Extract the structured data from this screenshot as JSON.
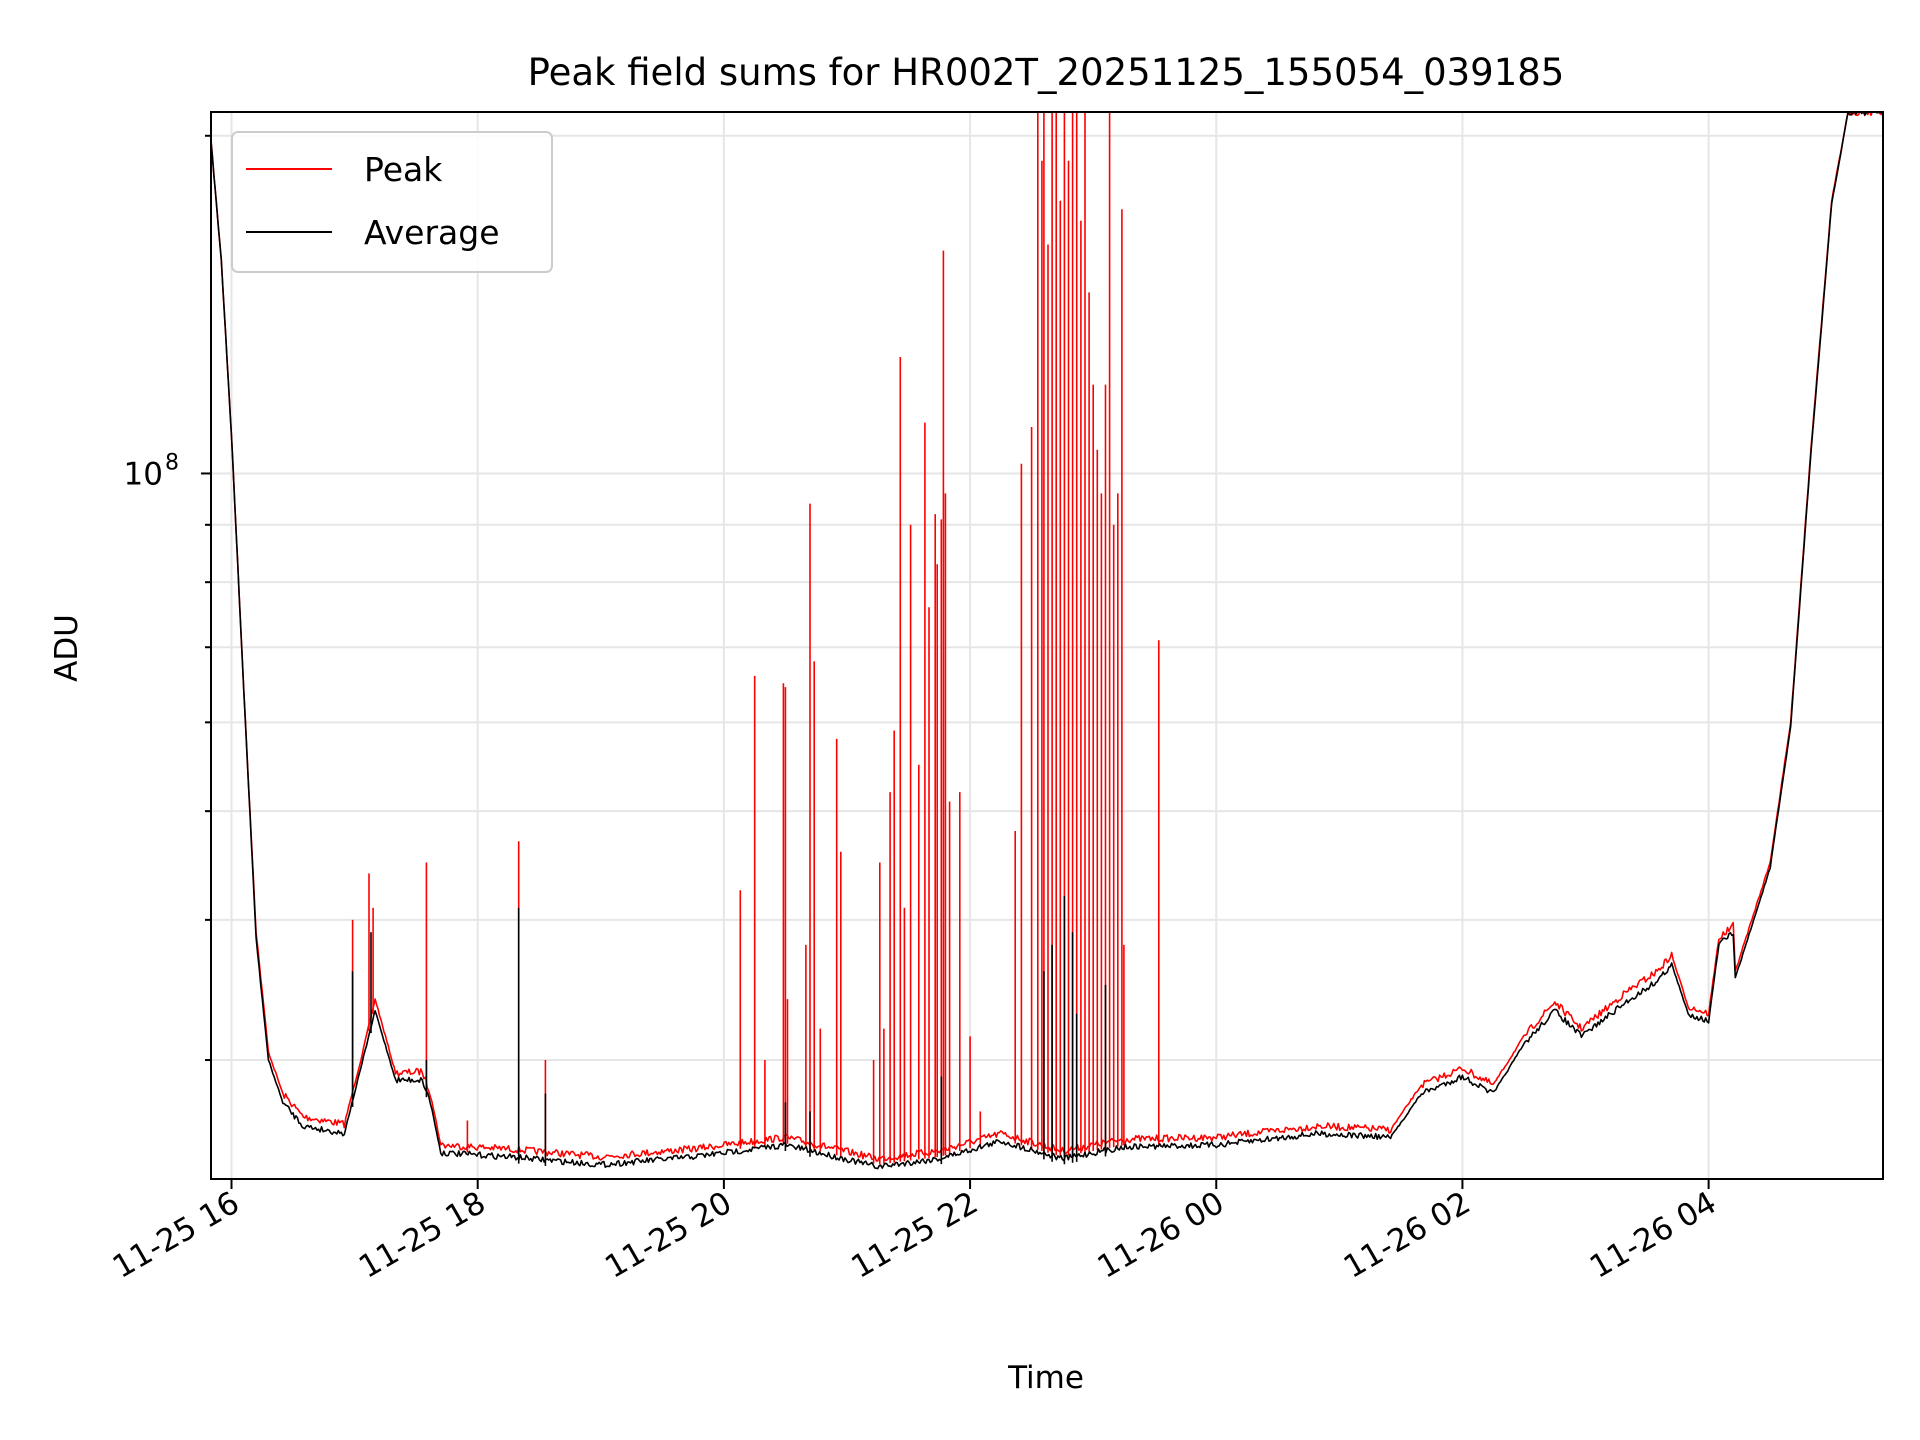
{
  "chart_data": {
    "type": "line",
    "title": "Peak field sums for HR002T_20251125_155054_039185",
    "xlabel": "Time",
    "ylabel": "ADU",
    "y_scale": "log",
    "grid": true,
    "legend_placement": "top-left",
    "xlim": [
      "2025-11-25T15:50",
      "2025-11-26T05:25"
    ],
    "ylim": [
      23500000.0,
      210000000.0
    ],
    "x_ticks": [
      {
        "t": "2025-11-25T16:00",
        "label": "11-25 16"
      },
      {
        "t": "2025-11-25T18:00",
        "label": "11-25 18"
      },
      {
        "t": "2025-11-25T20:00",
        "label": "11-25 20"
      },
      {
        "t": "2025-11-25T22:00",
        "label": "11-25 22"
      },
      {
        "t": "2025-11-26T00:00",
        "label": "11-26 00"
      },
      {
        "t": "2025-11-26T02:00",
        "label": "11-26 02"
      },
      {
        "t": "2025-11-26T04:00",
        "label": "11-26 04"
      }
    ],
    "y_ticks": [
      {
        "value": 100000000.0,
        "label": "10",
        "exponent": "8"
      }
    ],
    "series": [
      {
        "name": "Peak",
        "color": "#ff0000",
        "baseline": [
          [
            "2025-11-25T15:50",
            198000000.0
          ],
          [
            "2025-11-25T15:55",
            155000000.0
          ],
          [
            "2025-11-25T16:00",
            108000000.0
          ],
          [
            "2025-11-25T16:06",
            64000000.0
          ],
          [
            "2025-11-25T16:12",
            39000000.0
          ],
          [
            "2025-11-25T16:18",
            30500000.0
          ],
          [
            "2025-11-25T16:25",
            28000000.0
          ],
          [
            "2025-11-25T16:35",
            26700000.0
          ],
          [
            "2025-11-25T16:55",
            26300000.0
          ],
          [
            "2025-11-25T17:03",
            30000000.0
          ],
          [
            "2025-11-25T17:10",
            34000000.0
          ],
          [
            "2025-11-25T17:20",
            29200000.0
          ],
          [
            "2025-11-25T17:33",
            29300000.0
          ],
          [
            "2025-11-25T17:37",
            28000000.0
          ],
          [
            "2025-11-25T17:42",
            25200000.0
          ],
          [
            "2025-11-25T18:15",
            25000000.0
          ],
          [
            "2025-11-25T19:00",
            24600000.0
          ],
          [
            "2025-11-25T19:45",
            25000000.0
          ],
          [
            "2025-11-25T20:30",
            25600000.0
          ],
          [
            "2025-11-25T21:15",
            24500000.0
          ],
          [
            "2025-11-25T21:45",
            24900000.0
          ],
          [
            "2025-11-25T22:15",
            25800000.0
          ],
          [
            "2025-11-25T22:45",
            24900000.0
          ],
          [
            "2025-11-25T23:15",
            25500000.0
          ],
          [
            "2025-11-26T00:00",
            25600000.0
          ],
          [
            "2025-11-26T00:50",
            26200000.0
          ],
          [
            "2025-11-26T01:25",
            26000000.0
          ],
          [
            "2025-11-26T01:40",
            28500000.0
          ],
          [
            "2025-11-26T02:00",
            29500000.0
          ],
          [
            "2025-11-26T02:15",
            28500000.0
          ],
          [
            "2025-11-26T02:30",
            31500000.0
          ],
          [
            "2025-11-26T02:45",
            33800000.0
          ],
          [
            "2025-11-26T02:58",
            32000000.0
          ],
          [
            "2025-11-26T03:20",
            34500000.0
          ],
          [
            "2025-11-26T03:35",
            36000000.0
          ],
          [
            "2025-11-26T03:42",
            37200000.0
          ],
          [
            "2025-11-26T03:50",
            33500000.0
          ],
          [
            "2025-11-26T04:00",
            33000000.0
          ],
          [
            "2025-11-26T04:05",
            38500000.0
          ],
          [
            "2025-11-26T04:12",
            39500000.0
          ],
          [
            "2025-11-26T04:13",
            36000000.0
          ],
          [
            "2025-11-26T04:22",
            40500000.0
          ],
          [
            "2025-11-26T04:30",
            45000000.0
          ],
          [
            "2025-11-26T04:40",
            60000000.0
          ],
          [
            "2025-11-26T04:50",
            106000000.0
          ],
          [
            "2025-11-26T05:00",
            175000000.0
          ],
          [
            "2025-11-26T05:08",
            210000000.0
          ],
          [
            "2025-11-26T05:25",
            210000000.0
          ]
        ],
        "spikes": [
          [
            "2025-11-25T16:59",
            40000000.0
          ],
          [
            "2025-11-25T17:07",
            44000000.0
          ],
          [
            "2025-11-25T17:09",
            41000000.0
          ],
          [
            "2025-11-25T17:35",
            45000000.0
          ],
          [
            "2025-11-25T17:55",
            26500000.0
          ],
          [
            "2025-11-25T18:20",
            47000000.0
          ],
          [
            "2025-11-25T18:33",
            30000000.0
          ],
          [
            "2025-11-25T20:08",
            42500000.0
          ],
          [
            "2025-11-25T20:15",
            66000000.0
          ],
          [
            "2025-11-25T20:20",
            30000000.0
          ],
          [
            "2025-11-25T20:29",
            65000000.0
          ],
          [
            "2025-11-25T20:30",
            64500000.0
          ],
          [
            "2025-11-25T20:31",
            34000000.0
          ],
          [
            "2025-11-25T20:40",
            38000000.0
          ],
          [
            "2025-11-25T20:42",
            94000000.0
          ],
          [
            "2025-11-25T20:44",
            68000000.0
          ],
          [
            "2025-11-25T20:47",
            32000000.0
          ],
          [
            "2025-11-25T20:55",
            58000000.0
          ],
          [
            "2025-11-25T20:57",
            46000000.0
          ],
          [
            "2025-11-25T21:13",
            30000000.0
          ],
          [
            "2025-11-25T21:16",
            45000000.0
          ],
          [
            "2025-11-25T21:18",
            32000000.0
          ],
          [
            "2025-11-25T21:21",
            52000000.0
          ],
          [
            "2025-11-25T21:23",
            59000000.0
          ],
          [
            "2025-11-25T21:26",
            127000000.0
          ],
          [
            "2025-11-25T21:28",
            41000000.0
          ],
          [
            "2025-11-25T21:31",
            90000000.0
          ],
          [
            "2025-11-25T21:35",
            55000000.0
          ],
          [
            "2025-11-25T21:38",
            111000000.0
          ],
          [
            "2025-11-25T21:40",
            76000000.0
          ],
          [
            "2025-11-25T21:43",
            92000000.0
          ],
          [
            "2025-11-25T21:44",
            83000000.0
          ],
          [
            "2025-11-25T21:46",
            91000000.0
          ],
          [
            "2025-11-25T21:47",
            158000000.0
          ],
          [
            "2025-11-25T21:48",
            96000000.0
          ],
          [
            "2025-11-25T21:50",
            51000000.0
          ],
          [
            "2025-11-25T21:55",
            52000000.0
          ],
          [
            "2025-11-25T22:00",
            31500000.0
          ],
          [
            "2025-11-25T22:05",
            27000000.0
          ],
          [
            "2025-11-25T22:22",
            48000000.0
          ],
          [
            "2025-11-25T22:25",
            102000000.0
          ],
          [
            "2025-11-25T22:30",
            110000000.0
          ],
          [
            "2025-11-25T22:33",
            210000000.0
          ],
          [
            "2025-11-25T22:35",
            190000000.0
          ],
          [
            "2025-11-25T22:36",
            210000000.0
          ],
          [
            "2025-11-25T22:38",
            160000000.0
          ],
          [
            "2025-11-25T22:40",
            210000000.0
          ],
          [
            "2025-11-25T22:42",
            210000000.0
          ],
          [
            "2025-11-25T22:44",
            175000000.0
          ],
          [
            "2025-11-25T22:46",
            210000000.0
          ],
          [
            "2025-11-25T22:48",
            190000000.0
          ],
          [
            "2025-11-25T22:50",
            210000000.0
          ],
          [
            "2025-11-25T22:52",
            210000000.0
          ],
          [
            "2025-11-25T22:54",
            168000000.0
          ],
          [
            "2025-11-25T22:56",
            210000000.0
          ],
          [
            "2025-11-25T22:58",
            145000000.0
          ],
          [
            "2025-11-25T23:00",
            120000000.0
          ],
          [
            "2025-11-25T23:02",
            105000000.0
          ],
          [
            "2025-11-25T23:04",
            96000000.0
          ],
          [
            "2025-11-25T23:06",
            120000000.0
          ],
          [
            "2025-11-25T23:08",
            210000000.0
          ],
          [
            "2025-11-25T23:10",
            90000000.0
          ],
          [
            "2025-11-25T23:12",
            96000000.0
          ],
          [
            "2025-11-25T23:14",
            172000000.0
          ],
          [
            "2025-11-25T23:15",
            38000000.0
          ],
          [
            "2025-11-25T23:32",
            71000000.0
          ]
        ]
      },
      {
        "name": "Average",
        "color": "#000000",
        "baseline": [
          [
            "2025-11-25T15:50",
            198000000.0
          ],
          [
            "2025-11-25T15:55",
            155000000.0
          ],
          [
            "2025-11-25T16:00",
            108000000.0
          ],
          [
            "2025-11-25T16:06",
            64000000.0
          ],
          [
            "2025-11-25T16:12",
            38500000.0
          ],
          [
            "2025-11-25T16:18",
            30000000.0
          ],
          [
            "2025-11-25T16:25",
            27500000.0
          ],
          [
            "2025-11-25T16:35",
            26200000.0
          ],
          [
            "2025-11-25T16:55",
            25800000.0
          ],
          [
            "2025-11-25T17:03",
            29500000.0
          ],
          [
            "2025-11-25T17:10",
            33200000.0
          ],
          [
            "2025-11-25T17:20",
            28800000.0
          ],
          [
            "2025-11-25T17:33",
            28800000.0
          ],
          [
            "2025-11-25T17:37",
            27500000.0
          ],
          [
            "2025-11-25T17:42",
            24800000.0
          ],
          [
            "2025-11-25T18:15",
            24600000.0
          ],
          [
            "2025-11-25T19:00",
            24200000.0
          ],
          [
            "2025-11-25T19:45",
            24600000.0
          ],
          [
            "2025-11-25T20:30",
            25200000.0
          ],
          [
            "2025-11-25T21:15",
            24100000.0
          ],
          [
            "2025-11-25T21:45",
            24500000.0
          ],
          [
            "2025-11-25T22:15",
            25400000.0
          ],
          [
            "2025-11-25T22:45",
            24500000.0
          ],
          [
            "2025-11-25T23:15",
            25100000.0
          ],
          [
            "2025-11-26T00:00",
            25200000.0
          ],
          [
            "2025-11-26T00:50",
            25800000.0
          ],
          [
            "2025-11-26T01:25",
            25600000.0
          ],
          [
            "2025-11-26T01:40",
            28000000.0
          ],
          [
            "2025-11-26T02:00",
            29000000.0
          ],
          [
            "2025-11-26T02:15",
            28000000.0
          ],
          [
            "2025-11-26T02:30",
            31000000.0
          ],
          [
            "2025-11-26T02:45",
            33200000.0
          ],
          [
            "2025-11-26T02:58",
            31500000.0
          ],
          [
            "2025-11-26T03:20",
            33800000.0
          ],
          [
            "2025-11-26T03:35",
            35300000.0
          ],
          [
            "2025-11-26T03:42",
            36500000.0
          ],
          [
            "2025-11-26T03:50",
            33000000.0
          ],
          [
            "2025-11-26T04:00",
            32500000.0
          ],
          [
            "2025-11-26T04:05",
            38000000.0
          ],
          [
            "2025-11-26T04:12",
            39000000.0
          ],
          [
            "2025-11-26T04:13",
            35500000.0
          ],
          [
            "2025-11-26T04:22",
            40000000.0
          ],
          [
            "2025-11-26T04:30",
            44500000.0
          ],
          [
            "2025-11-26T04:40",
            59500000.0
          ],
          [
            "2025-11-26T04:50",
            105000000.0
          ],
          [
            "2025-11-26T05:00",
            174000000.0
          ],
          [
            "2025-11-26T05:08",
            210000000.0
          ],
          [
            "2025-11-26T05:25",
            210000000.0
          ]
        ],
        "spikes": [
          [
            "2025-11-25T16:59",
            36000000.0
          ],
          [
            "2025-11-25T17:08",
            39000000.0
          ],
          [
            "2025-11-25T17:35",
            30000000.0
          ],
          [
            "2025-11-25T18:20",
            41000000.0
          ],
          [
            "2025-11-25T18:33",
            28000000.0
          ],
          [
            "2025-11-25T20:30",
            27500000.0
          ],
          [
            "2025-11-25T20:42",
            27000000.0
          ],
          [
            "2025-11-25T21:46",
            29000000.0
          ],
          [
            "2025-11-25T22:36",
            36000000.0
          ],
          [
            "2025-11-25T22:40",
            38000000.0
          ],
          [
            "2025-11-25T22:46",
            42000000.0
          ],
          [
            "2025-11-25T22:50",
            39000000.0
          ],
          [
            "2025-11-25T22:52",
            33000000.0
          ],
          [
            "2025-11-25T23:06",
            35000000.0
          ]
        ]
      }
    ]
  }
}
